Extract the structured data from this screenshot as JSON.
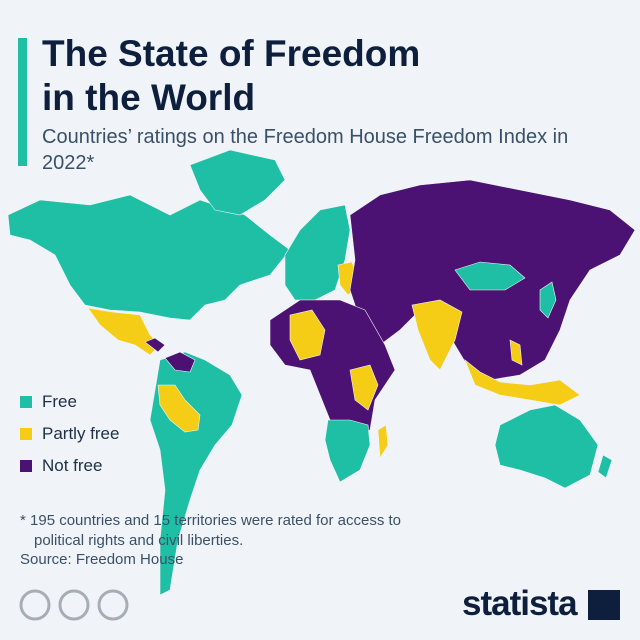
{
  "header": {
    "title": "The State of Freedom in the World",
    "subtitle": "Countries’ ratings on the Freedom House Freedom Index in 2022*"
  },
  "legend": {
    "items": [
      {
        "label": "Free",
        "color": "#1fbfa6"
      },
      {
        "label": "Partly free",
        "color": "#f5cd16"
      },
      {
        "label": "Not free",
        "color": "#4b1173"
      }
    ]
  },
  "footer": {
    "note": "* 195 countries and 15 territories were rated for access to political rights and civil liberties.",
    "source": "Source: Freedom House",
    "brand": "statista"
  }
}
